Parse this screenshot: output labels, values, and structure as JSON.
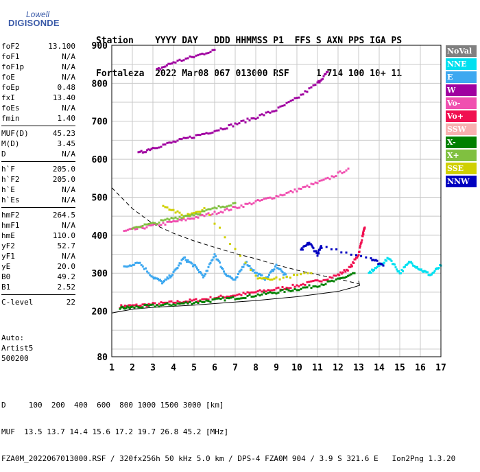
{
  "logo": {
    "line1": "Lowell",
    "line2": "DIGISONDE"
  },
  "header": {
    "line1": "Station    YYYY DAY   DDD HHMMSS P1  FFS S AXN PPS IGA PS",
    "line2": "Fortaleza  2022 Mar08 067 013000 RSF     1 714 100 10+ 11"
  },
  "params": [
    {
      "label": "foF2",
      "value": "13.100"
    },
    {
      "label": "foF1",
      "value": "N/A"
    },
    {
      "label": "foF1p",
      "value": "N/A"
    },
    {
      "label": "foE",
      "value": "N/A"
    },
    {
      "label": "foEp",
      "value": "0.48"
    },
    {
      "label": "fxI",
      "value": "13.40"
    },
    {
      "label": "foEs",
      "value": "N/A"
    },
    {
      "label": "fmin",
      "value": "1.40"
    },
    {
      "sep": true
    },
    {
      "label": "MUF(D)",
      "value": "45.23"
    },
    {
      "label": "M(D)",
      "value": "3.45"
    },
    {
      "label": "D",
      "value": "N/A"
    },
    {
      "sep": true
    },
    {
      "label": "h`F",
      "value": "205.0"
    },
    {
      "label": "h`F2",
      "value": "205.0"
    },
    {
      "label": "h`E",
      "value": "N/A"
    },
    {
      "label": "h`Es",
      "value": "N/A"
    },
    {
      "sep": true
    },
    {
      "label": "hmF2",
      "value": "264.5"
    },
    {
      "label": "hmF1",
      "value": "N/A"
    },
    {
      "label": "hmE",
      "value": "110.0"
    },
    {
      "label": "yF2",
      "value": "52.7"
    },
    {
      "label": "yF1",
      "value": "N/A"
    },
    {
      "label": "yE",
      "value": "20.0"
    },
    {
      "label": "B0",
      "value": "49.2"
    },
    {
      "label": "B1",
      "value": "2.52"
    },
    {
      "sep": true
    },
    {
      "label": "C-level",
      "value": "22"
    }
  ],
  "auto": {
    "line1": "Auto:",
    "line2": "Artist5",
    "line3": "500200"
  },
  "legend": [
    {
      "label": "NoVal",
      "color": "#808080"
    },
    {
      "label": "NNE",
      "color": "#00e0f0"
    },
    {
      "label": "E",
      "color": "#3da8f0"
    },
    {
      "label": "W",
      "color": "#a000a0"
    },
    {
      "label": "Vo-",
      "color": "#f050b0"
    },
    {
      "label": "Vo+",
      "color": "#f01050"
    },
    {
      "label": "SSW",
      "color": "#f8b0b0"
    },
    {
      "label": "X-",
      "color": "#008000"
    },
    {
      "label": "X+",
      "color": "#80c040"
    },
    {
      "label": "SSE",
      "color": "#d0d000"
    },
    {
      "label": "NNW",
      "color": "#0000c0"
    }
  ],
  "footer": {
    "line1": "D     100  200  400  600  800 1000 1500 3000 [km]",
    "line2": "MUF  13.5 13.7 14.4 15.6 17.2 19.7 26.8 45.2 [MHz]",
    "line3": "FZA0M_2022067013000.RSF / 320fx256h 50 kHz 5.0 km / DPS-4 FZA0M 904 / 3.9 S 321.6 E   Ion2Png 1.3.20"
  },
  "chart_data": {
    "type": "scatter",
    "xlim": [
      1,
      17
    ],
    "ylim": [
      80,
      900
    ],
    "xticks": [
      "1",
      "2",
      "3",
      "4",
      "5",
      "6",
      "7",
      "8",
      "9",
      "10",
      "11",
      "12",
      "13",
      "14",
      "15",
      "16",
      "17"
    ],
    "yticks": [
      "80",
      "200",
      "300",
      "400",
      "500",
      "600",
      "700",
      "800",
      "900"
    ],
    "grid": true,
    "series": [
      {
        "name": "Vo+",
        "color": "#f01050",
        "points": [
          [
            1.4,
            212
          ],
          [
            2,
            214
          ],
          [
            3,
            218
          ],
          [
            4,
            223
          ],
          [
            5,
            228
          ],
          [
            6,
            235
          ],
          [
            7,
            242
          ],
          [
            8,
            250
          ],
          [
            9,
            258
          ],
          [
            10,
            267
          ],
          [
            11,
            279
          ],
          [
            12,
            295
          ],
          [
            12.6,
            315
          ],
          [
            13.0,
            350
          ],
          [
            13.2,
            400
          ],
          [
            13.3,
            420
          ]
        ]
      },
      {
        "name": "X-",
        "color": "#008000",
        "points": [
          [
            1.4,
            208
          ],
          [
            2,
            210
          ],
          [
            3,
            214
          ],
          [
            4,
            218
          ],
          [
            5,
            223
          ],
          [
            6,
            229
          ],
          [
            7,
            235
          ],
          [
            8,
            242
          ],
          [
            9,
            250
          ],
          [
            10,
            258
          ],
          [
            11,
            268
          ],
          [
            12,
            282
          ],
          [
            12.8,
            300
          ]
        ]
      },
      {
        "name": "Vo-",
        "color": "#f050b0",
        "points": [
          [
            1.6,
            410
          ],
          [
            2.5,
            420
          ],
          [
            3.5,
            430
          ],
          [
            4.5,
            440
          ],
          [
            5.5,
            452
          ],
          [
            6.5,
            465
          ],
          [
            7.5,
            480
          ],
          [
            8.5,
            495
          ],
          [
            9.5,
            510
          ],
          [
            10.5,
            528
          ],
          [
            11.5,
            548
          ],
          [
            12.5,
            575
          ]
        ]
      },
      {
        "name": "W",
        "color": "#a000a0",
        "points": [
          [
            2.3,
            615
          ],
          [
            3,
            630
          ],
          [
            4,
            645
          ],
          [
            5,
            660
          ],
          [
            6,
            675
          ],
          [
            7,
            692
          ],
          [
            8,
            710
          ],
          [
            9,
            730
          ],
          [
            10,
            760
          ],
          [
            11,
            800
          ],
          [
            11.5,
            830
          ]
        ]
      },
      {
        "name": "W",
        "color": "#a000a0",
        "points": [
          [
            3.2,
            835
          ],
          [
            4,
            855
          ],
          [
            5,
            870
          ],
          [
            6,
            888
          ]
        ]
      },
      {
        "name": "E",
        "color": "#3da8f0",
        "points": [
          [
            1.6,
            315
          ],
          [
            2.3,
            330
          ],
          [
            3,
            290
          ],
          [
            3.5,
            275
          ],
          [
            4,
            300
          ],
          [
            4.5,
            340
          ],
          [
            5,
            320
          ],
          [
            5.5,
            290
          ],
          [
            6,
            350
          ],
          [
            6.5,
            300
          ],
          [
            7,
            280
          ],
          [
            7.5,
            330
          ],
          [
            8,
            300
          ],
          [
            8.5,
            285
          ],
          [
            9,
            320
          ],
          [
            9.5,
            290
          ]
        ]
      },
      {
        "name": "NNE",
        "color": "#00e0f0",
        "points": [
          [
            13.5,
            300
          ],
          [
            14,
            320
          ],
          [
            14.5,
            340
          ],
          [
            15,
            300
          ],
          [
            15.5,
            330
          ],
          [
            16,
            310
          ],
          [
            16.5,
            295
          ],
          [
            17,
            320
          ]
        ]
      },
      {
        "name": "NNW",
        "color": "#0000c0",
        "points": [
          [
            10.2,
            360
          ],
          [
            10.6,
            380
          ],
          [
            11,
            350
          ],
          [
            11.2,
            370
          ],
          [
            13.6,
            340
          ],
          [
            14.2,
            320
          ]
        ]
      },
      {
        "name": "SSE",
        "color": "#d0d000",
        "points": [
          [
            3.5,
            480
          ],
          [
            4.5,
            450
          ],
          [
            5.5,
            470
          ],
          [
            8,
            290
          ],
          [
            9,
            285
          ],
          [
            10.7,
            300
          ]
        ]
      },
      {
        "name": "X+",
        "color": "#80c040",
        "points": [
          [
            2,
            420
          ],
          [
            3,
            430
          ],
          [
            4,
            445
          ],
          [
            5,
            455
          ],
          [
            6,
            470
          ],
          [
            7,
            485
          ]
        ]
      }
    ],
    "profile_solid": [
      [
        1,
        195
      ],
      [
        2,
        205
      ],
      [
        3,
        210
      ],
      [
        4,
        213
      ],
      [
        5,
        216
      ],
      [
        6,
        220
      ],
      [
        7,
        224
      ],
      [
        8,
        228
      ],
      [
        9,
        233
      ],
      [
        10,
        238
      ],
      [
        11,
        245
      ],
      [
        12,
        252
      ],
      [
        12.7,
        262
      ],
      [
        13.05,
        268
      ],
      [
        13.0,
        280
      ]
    ],
    "profile_dashed": [
      [
        1,
        525
      ],
      [
        2,
        470
      ],
      [
        3,
        430
      ],
      [
        4,
        405
      ],
      [
        5,
        385
      ],
      [
        6,
        368
      ],
      [
        7,
        352
      ],
      [
        8,
        338
      ],
      [
        9,
        322
      ],
      [
        10,
        308
      ],
      [
        11,
        296
      ],
      [
        12,
        285
      ],
      [
        13,
        272
      ]
    ]
  }
}
